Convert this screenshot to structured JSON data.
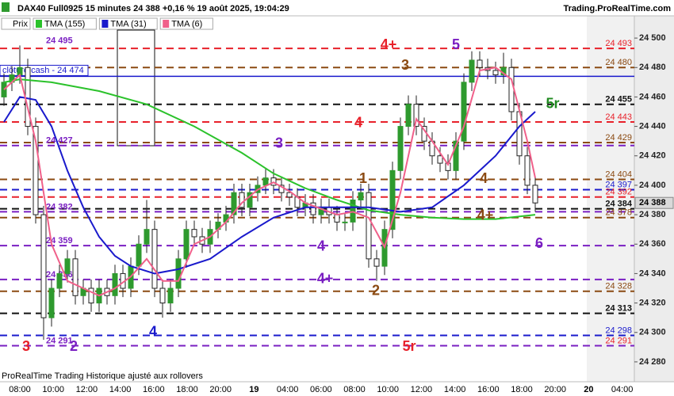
{
  "chart_data": {
    "type": "candlestick",
    "title": "DAX40 Full0925 15 minutes 24 388 +0,16 % 19 août 2025, 19:04:29",
    "source": "Trading.ProRealTime.com",
    "footer": "ProRealTime Trading  Historique ajusté aux rollovers",
    "price_series_name": "Prix",
    "last_price": {
      "value": 24388,
      "label": "24 388"
    },
    "ylim": [
      24270,
      24510
    ],
    "yticks": [
      {
        "value": 24280,
        "label": "24 280"
      },
      {
        "value": 24300,
        "label": "24 300"
      },
      {
        "value": 24320,
        "label": "24 320"
      },
      {
        "value": 24340,
        "label": "24 340"
      },
      {
        "value": 24360,
        "label": "24 360"
      },
      {
        "value": 24380,
        "label": "24 380"
      },
      {
        "value": 24400,
        "label": "24 400"
      },
      {
        "value": 24420,
        "label": "24 420"
      },
      {
        "value": 24440,
        "label": "24 440"
      },
      {
        "value": 24460,
        "label": "24 460"
      },
      {
        "value": 24480,
        "label": "24 480"
      },
      {
        "value": 24500,
        "label": "24 500"
      }
    ],
    "time_labels": [
      "08:00",
      "10:00",
      "12:00",
      "14:00",
      "16:00",
      "18:00",
      "20:00",
      "19",
      "04:00",
      "06:00",
      "08:00",
      "10:00",
      "12:00",
      "14:00",
      "16:00",
      "18:00",
      "20:00",
      "20",
      "04:00"
    ],
    "candles": {
      "open": [
        24460,
        24470,
        24475,
        24480,
        24440,
        24380,
        24310,
        24330,
        24340,
        24350,
        24325,
        24330,
        24320,
        24330,
        24325,
        24340,
        24330,
        24345,
        24360,
        24370,
        24330,
        24320,
        24330,
        24350,
        24370,
        24365,
        24360,
        24370,
        24375,
        24380,
        24395,
        24385,
        24395,
        24400,
        24405,
        24400,
        24395,
        24392,
        24385,
        24388,
        24380,
        24385,
        24380,
        24375,
        24375,
        24390,
        24395,
        24350,
        24345,
        24370,
        24410,
        24440,
        24455,
        24440,
        24430,
        24420,
        24415,
        24410,
        24430,
        24470,
        24485,
        24480,
        24478,
        24475,
        24480,
        24450,
        24420,
        24400
      ],
      "high": [
        24476,
        24481,
        24495,
        24486,
        24446,
        24386,
        24336,
        24346,
        24356,
        24356,
        24336,
        24336,
        24336,
        24336,
        24346,
        24346,
        24351,
        24366,
        24390,
        24376,
        24336,
        24336,
        24356,
        24376,
        24376,
        24371,
        24376,
        24381,
        24386,
        24401,
        24401,
        24401,
        24406,
        24411,
        24411,
        24406,
        24401,
        24398,
        24394,
        24394,
        24391,
        24391,
        24386,
        24381,
        24396,
        24401,
        24401,
        24356,
        24376,
        24416,
        24446,
        24461,
        24461,
        24446,
        24436,
        24426,
        24421,
        24436,
        24476,
        24491,
        24491,
        24486,
        24484,
        24490,
        24486,
        24456,
        24426,
        24406
      ],
      "low": [
        24454,
        24464,
        24469,
        24434,
        24374,
        24295,
        24304,
        24324,
        24334,
        24319,
        24319,
        24314,
        24314,
        24319,
        24319,
        24324,
        24324,
        24339,
        24354,
        24324,
        24310,
        24314,
        24324,
        24344,
        24359,
        24354,
        24354,
        24364,
        24369,
        24374,
        24379,
        24379,
        24389,
        24394,
        24394,
        24389,
        24386,
        24379,
        24379,
        24374,
        24374,
        24374,
        24369,
        24369,
        24369,
        24384,
        24344,
        24335,
        24339,
        24364,
        24404,
        24434,
        24434,
        24424,
        24414,
        24409,
        24404,
        24404,
        24424,
        24464,
        24474,
        24472,
        24469,
        24469,
        24444,
        24414,
        24394,
        24382
      ],
      "close": [
        24470,
        24475,
        24480,
        24440,
        24380,
        24310,
        24330,
        24340,
        24350,
        24325,
        24330,
        24320,
        24330,
        24325,
        24340,
        24330,
        24345,
        24360,
        24370,
        24330,
        24320,
        24330,
        24350,
        24370,
        24365,
        24360,
        24370,
        24375,
        24380,
        24395,
        24385,
        24395,
        24400,
        24405,
        24400,
        24395,
        24392,
        24385,
        24388,
        24380,
        24385,
        24380,
        24375,
        24375,
        24390,
        24395,
        24350,
        24345,
        24370,
        24410,
        24440,
        24455,
        24440,
        24430,
        24420,
        24415,
        24410,
        24430,
        24470,
        24485,
        24480,
        24478,
        24475,
        24480,
        24450,
        24420,
        24400,
        24388
      ],
      "up_color": "#2e9a2e",
      "down_color": "#222222"
    },
    "series": [
      {
        "name": "TMA (155)",
        "color": "#2bc22b",
        "x": [
          0,
          2,
          6,
          12,
          18,
          24,
          30,
          34,
          38,
          42,
          46,
          50,
          54,
          58,
          62,
          67
        ],
        "values": [
          24470,
          24472,
          24470,
          24464,
          24455,
          24440,
          24422,
          24408,
          24398,
          24390,
          24383,
          24380,
          24378,
          24377,
          24377,
          24380
        ]
      },
      {
        "name": "TMA (31)",
        "color": "#1a1acc",
        "x": [
          0,
          2,
          4,
          6,
          8,
          10,
          12,
          14,
          16,
          19,
          22,
          26,
          30,
          34,
          38,
          42,
          46,
          50,
          54,
          58,
          62,
          65,
          67
        ],
        "values": [
          24443,
          24460,
          24458,
          24440,
          24410,
          24385,
          24365,
          24352,
          24345,
          24340,
          24343,
          24350,
          24365,
          24378,
          24385,
          24385,
          24385,
          24382,
          24385,
          24400,
          24420,
          24440,
          24450
        ]
      },
      {
        "name": "TMA (6)",
        "color": "#f0608a",
        "x": [
          0,
          2,
          4,
          6,
          8,
          10,
          12,
          14,
          16,
          18,
          20,
          22,
          24,
          26,
          28,
          30,
          32,
          34,
          36,
          38,
          40,
          42,
          44,
          46,
          48,
          50,
          52,
          54,
          56,
          58,
          60,
          62,
          64,
          66,
          67
        ],
        "values": [
          24465,
          24475,
          24430,
          24360,
          24335,
          24330,
          24325,
          24330,
          24338,
          24350,
          24335,
          24335,
          24360,
          24365,
          24375,
          24388,
          24397,
          24402,
          24396,
          24388,
          24384,
          24380,
          24382,
          24378,
          24358,
          24395,
          24445,
          24430,
          24414,
          24440,
          24478,
          24480,
          24472,
          24430,
          24405
        ]
      }
    ],
    "levels": [
      {
        "value": 24493,
        "label": "24 493",
        "color": "#e8212a",
        "side": "right",
        "style": "dashed"
      },
      {
        "value": 24480,
        "label": "24 480",
        "color": "#8b4a12",
        "side": "right",
        "style": "dashed"
      },
      {
        "value": 24474,
        "label": "clôture cash -  24 474",
        "color": "#1a1acc",
        "side": "box",
        "style": "solid"
      },
      {
        "value": 24455,
        "label": "24 455",
        "color": "#111111",
        "side": "right",
        "style": "dashed"
      },
      {
        "value": 24443,
        "label": "24 443",
        "color": "#e8212a",
        "side": "right",
        "style": "dashed"
      },
      {
        "value": 24429,
        "label": "24 429",
        "color": "#8b4a12",
        "side": "right",
        "style": "dashed"
      },
      {
        "value": 24427,
        "label": "24 427",
        "color": "#7a1fc2",
        "side": "left",
        "style": "dashed"
      },
      {
        "value": 24404,
        "label": "24 404",
        "color": "#8b4a12",
        "side": "right",
        "style": "dashed"
      },
      {
        "value": 24397,
        "label": "24 397",
        "color": "#1a1acc",
        "side": "right",
        "style": "dashed"
      },
      {
        "value": 24392,
        "label": "24 392",
        "color": "#e8212a",
        "side": "right",
        "style": "dashed"
      },
      {
        "value": 24384,
        "label": "24 384",
        "color": "#111111",
        "side": "right",
        "style": "dashed"
      },
      {
        "value": 24382,
        "label": "24 382",
        "color": "#7a1fc2",
        "side": "left",
        "style": "dashed"
      },
      {
        "value": 24378,
        "label": "24 378",
        "color": "#8b4a12",
        "side": "right",
        "style": "dashed"
      },
      {
        "value": 24359,
        "label": "24 359",
        "color": "#7a1fc2",
        "side": "left",
        "style": "dashed"
      },
      {
        "value": 24336,
        "label": "24 336",
        "color": "#7a1fc2",
        "side": "left",
        "style": "dashed"
      },
      {
        "value": 24328,
        "label": "24 328",
        "color": "#8b4a12",
        "side": "right",
        "style": "dashed"
      },
      {
        "value": 24313,
        "label": "24 313",
        "color": "#111111",
        "side": "right",
        "style": "dashed"
      },
      {
        "value": 24298,
        "label": "24 298",
        "color": "#1a1acc",
        "side": "right",
        "style": "dashed"
      },
      {
        "value": 24291,
        "label": "24 291",
        "color": "#e8212a",
        "side": "right",
        "style": "dashed"
      },
      {
        "value": 24291,
        "label": "24 291",
        "color": "#7a1fc2",
        "side": "left",
        "style": "dashed"
      },
      {
        "value": 24495,
        "label": "24 495",
        "color": "#7a1fc2",
        "side": "left",
        "style": "none"
      }
    ],
    "annotations": [
      {
        "text": "4+",
        "x": 48.5,
        "y": 24495,
        "color": "#e8212a"
      },
      {
        "text": "5",
        "x": 57,
        "y": 24495,
        "color": "#7a1fc2"
      },
      {
        "text": "3",
        "x": 50.6,
        "y": 24481,
        "color": "#8b4a12"
      },
      {
        "text": "5r",
        "x": 69.2,
        "y": 24455,
        "color": "#1f8a1f"
      },
      {
        "text": "4",
        "x": 44.7,
        "y": 24442,
        "color": "#e8212a"
      },
      {
        "text": "3",
        "x": 34.7,
        "y": 24428,
        "color": "#7a1fc2"
      },
      {
        "text": "1",
        "x": 45.3,
        "y": 24404,
        "color": "#8b4a12"
      },
      {
        "text": "4",
        "x": 60.5,
        "y": 24404,
        "color": "#8b4a12"
      },
      {
        "text": "4+",
        "x": 60.7,
        "y": 24379,
        "color": "#8b4a12"
      },
      {
        "text": "4",
        "x": 40,
        "y": 24358,
        "color": "#7a1fc2"
      },
      {
        "text": "6",
        "x": 67.5,
        "y": 24360,
        "color": "#7a1fc2"
      },
      {
        "text": "4+",
        "x": 40.5,
        "y": 24336,
        "color": "#7a1fc2"
      },
      {
        "text": "2",
        "x": 46.9,
        "y": 24328,
        "color": "#8b4a12"
      },
      {
        "text": "4",
        "x": 18.8,
        "y": 24300,
        "color": "#1a1acc"
      },
      {
        "text": "3",
        "x": 2.8,
        "y": 24290,
        "color": "#e8212a"
      },
      {
        "text": "2",
        "x": 8.8,
        "y": 24290,
        "color": "#7a1fc2"
      },
      {
        "text": "5r",
        "x": 51.1,
        "y": 24290,
        "color": "#e8212a"
      }
    ]
  }
}
